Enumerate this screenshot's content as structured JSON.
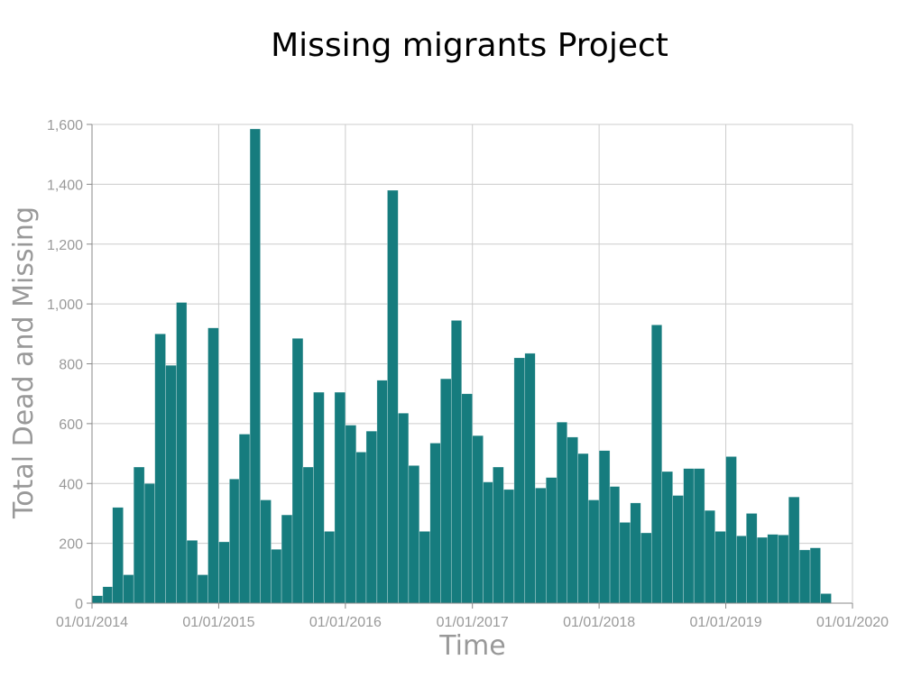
{
  "colors": {
    "bar": "#167c7e",
    "grid": "#cccccc",
    "axis": "#888888",
    "text": "#999999"
  },
  "chart_data": {
    "type": "bar",
    "title": "Missing migrants Project",
    "xlabel": "Time",
    "ylabel": "Total Dead and Missing",
    "ylim": [
      0,
      1600
    ],
    "xlim": [
      "2014-01-01",
      "2020-01-01"
    ],
    "grid": true,
    "y_ticks": [
      "0",
      "200",
      "400",
      "600",
      "800",
      "1,000",
      "1,200",
      "1,400",
      "1,600"
    ],
    "x_ticks": [
      "01/01/2014",
      "01/01/2015",
      "01/01/2016",
      "01/01/2017",
      "01/01/2018",
      "01/01/2019",
      "01/01/2020"
    ],
    "x": [
      "2014-01",
      "2014-02",
      "2014-03",
      "2014-04",
      "2014-05",
      "2014-06",
      "2014-07",
      "2014-08",
      "2014-09",
      "2014-10",
      "2014-11",
      "2014-12",
      "2015-01",
      "2015-02",
      "2015-03",
      "2015-04",
      "2015-05",
      "2015-06",
      "2015-07",
      "2015-08",
      "2015-09",
      "2015-10",
      "2015-11",
      "2015-12",
      "2016-01",
      "2016-02",
      "2016-03",
      "2016-04",
      "2016-05",
      "2016-06",
      "2016-07",
      "2016-08",
      "2016-09",
      "2016-10",
      "2016-11",
      "2016-12",
      "2017-01",
      "2017-02",
      "2017-03",
      "2017-04",
      "2017-05",
      "2017-06",
      "2017-07",
      "2017-08",
      "2017-09",
      "2017-10",
      "2017-11",
      "2017-12",
      "2018-01",
      "2018-02",
      "2018-03",
      "2018-04",
      "2018-05",
      "2018-06",
      "2018-07",
      "2018-08",
      "2018-09",
      "2018-10",
      "2018-11",
      "2018-12",
      "2019-01",
      "2019-02",
      "2019-03",
      "2019-04",
      "2019-05",
      "2019-06",
      "2019-07",
      "2019-08",
      "2019-09",
      "2019-10",
      "2019-11",
      "2019-12"
    ],
    "values": [
      25,
      55,
      320,
      95,
      455,
      400,
      900,
      795,
      1005,
      210,
      95,
      920,
      205,
      415,
      565,
      1585,
      345,
      180,
      295,
      885,
      455,
      705,
      240,
      705,
      595,
      505,
      575,
      745,
      1380,
      635,
      460,
      240,
      535,
      750,
      945,
      700,
      560,
      405,
      455,
      380,
      820,
      835,
      385,
      420,
      605,
      555,
      500,
      345,
      510,
      390,
      270,
      335,
      235,
      930,
      440,
      360,
      450,
      450,
      310,
      240,
      490,
      225,
      300,
      220,
      230,
      228,
      355,
      178,
      185,
      32,
      0,
      0
    ]
  }
}
